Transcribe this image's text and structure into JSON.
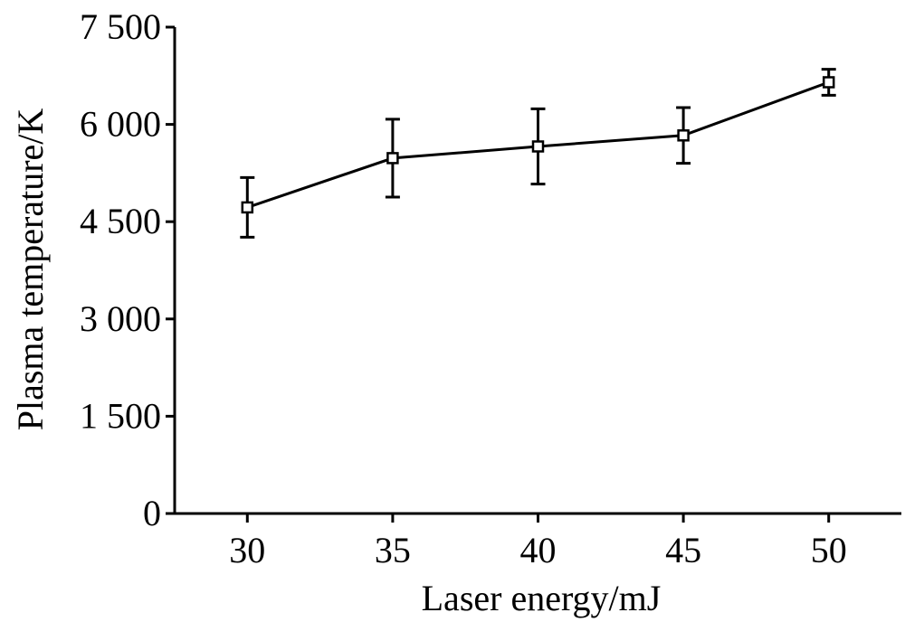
{
  "chart_data": {
    "type": "line",
    "title": "",
    "xlabel": "Laser energy/mJ",
    "ylabel": "Plasma temperature/K",
    "x": [
      30,
      35,
      40,
      45,
      50
    ],
    "xticks": [
      30,
      35,
      40,
      45,
      50
    ],
    "xtick_labels": [
      "30",
      "35",
      "40",
      "45",
      "50"
    ],
    "xlim": [
      27.5,
      52.5
    ],
    "ylim": [
      0,
      7500
    ],
    "yticks": [
      0,
      1500,
      3000,
      4500,
      6000,
      7500
    ],
    "ytick_labels": [
      "0",
      "1 500",
      "3 000",
      "4 500",
      "6 000",
      "7 500"
    ],
    "grid": false,
    "series": [
      {
        "values": [
          4720,
          5480,
          5660,
          5830,
          6650
        ],
        "error": [
          460,
          600,
          580,
          430,
          200
        ],
        "marker": "open-square",
        "color": "#000000"
      }
    ]
  }
}
